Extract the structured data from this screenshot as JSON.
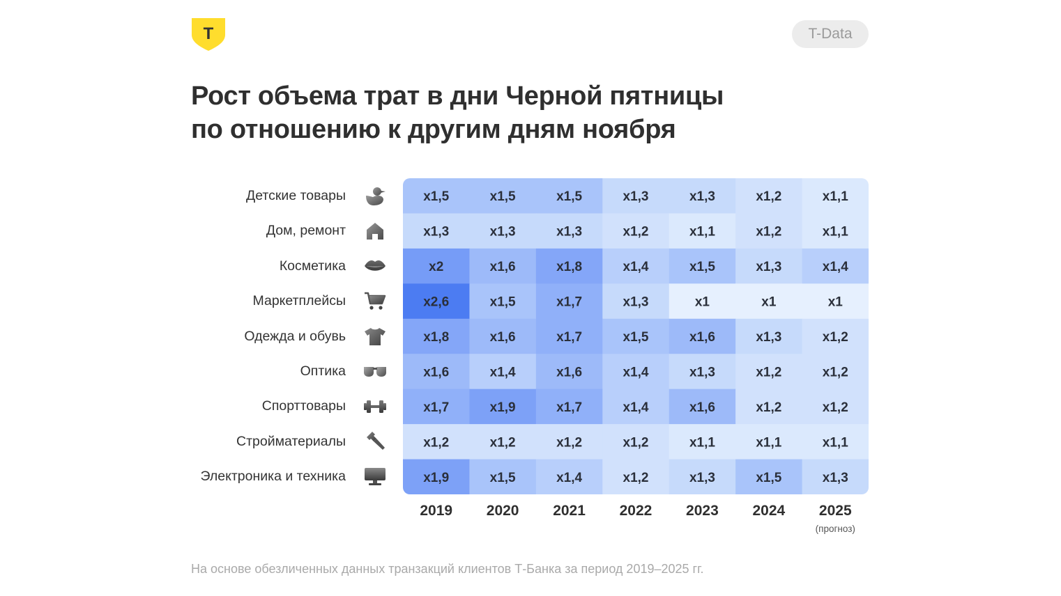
{
  "brand": {
    "logo_letter": "Т",
    "badge": "T-Data",
    "colors": {
      "logo_yellow": "#FFDD2D",
      "logo_ink": "#333333"
    }
  },
  "title": {
    "line1": "Рост объема трат в дни Черной пятницы",
    "line2": "по отношению к другим дням ноября"
  },
  "footnote": "На основе обезличенных данных транзакций клиентов Т-Банка за период 2019–2025 гг.",
  "chart_data": {
    "type": "heatmap",
    "title": "Рост объема трат в дни Черной пятницы по отношению к другим дням ноября",
    "x_categories": [
      "2019",
      "2020",
      "2021",
      "2022",
      "2023",
      "2024",
      "2025"
    ],
    "x_notes": [
      "",
      "",
      "",
      "",
      "",
      "",
      "(прогноз)"
    ],
    "y_categories": [
      "Детские товары",
      "Дом, ремонт",
      "Косметика",
      "Маркетплейсы",
      "Одежда и обувь",
      "Оптика",
      "Спорттовары",
      "Стройматериалы",
      "Электроника и техника"
    ],
    "y_icons": [
      "duck-icon",
      "house-icon",
      "lips-icon",
      "cart-icon",
      "tshirt-icon",
      "glasses-icon",
      "dumbbell-icon",
      "hammer-icon",
      "monitor-icon"
    ],
    "values": [
      [
        1.5,
        1.5,
        1.5,
        1.3,
        1.3,
        1.2,
        1.1
      ],
      [
        1.3,
        1.3,
        1.3,
        1.2,
        1.1,
        1.2,
        1.1
      ],
      [
        2.0,
        1.6,
        1.8,
        1.4,
        1.5,
        1.3,
        1.4
      ],
      [
        2.6,
        1.5,
        1.7,
        1.3,
        1.0,
        1.0,
        1.0
      ],
      [
        1.8,
        1.6,
        1.7,
        1.5,
        1.6,
        1.3,
        1.2
      ],
      [
        1.6,
        1.4,
        1.6,
        1.4,
        1.3,
        1.2,
        1.2
      ],
      [
        1.7,
        1.9,
        1.7,
        1.4,
        1.6,
        1.2,
        1.2
      ],
      [
        1.2,
        1.2,
        1.2,
        1.2,
        1.1,
        1.1,
        1.1
      ],
      [
        1.9,
        1.5,
        1.4,
        1.2,
        1.3,
        1.5,
        1.3
      ]
    ],
    "labels": [
      [
        "x1,5",
        "x1,5",
        "x1,5",
        "x1,3",
        "x1,3",
        "x1,2",
        "x1,1"
      ],
      [
        "x1,3",
        "x1,3",
        "x1,3",
        "x1,2",
        "x1,1",
        "x1,2",
        "x1,1"
      ],
      [
        "x2",
        "x1,6",
        "x1,8",
        "x1,4",
        "x1,5",
        "x1,3",
        "x1,4"
      ],
      [
        "x2,6",
        "x1,5",
        "x1,7",
        "x1,3",
        "x1",
        "x1",
        "x1"
      ],
      [
        "x1,8",
        "x1,6",
        "x1,7",
        "x1,5",
        "x1,6",
        "x1,3",
        "x1,2"
      ],
      [
        "x1,6",
        "x1,4",
        "x1,6",
        "x1,4",
        "x1,3",
        "x1,2",
        "x1,2"
      ],
      [
        "x1,7",
        "x1,9",
        "x1,7",
        "x1,4",
        "x1,6",
        "x1,2",
        "x1,2"
      ],
      [
        "x1,2",
        "x1,2",
        "x1,2",
        "x1,2",
        "x1,1",
        "x1,1",
        "x1,1"
      ],
      [
        "x1,9",
        "x1,5",
        "x1,4",
        "x1,2",
        "x1,3",
        "x1,5",
        "x1,3"
      ]
    ],
    "color_scale": {
      "stops": [
        {
          "value": 1.0,
          "color": "#E6F0FE"
        },
        {
          "value": 1.3,
          "color": "#C6DAFB"
        },
        {
          "value": 1.5,
          "color": "#A9C4FA"
        },
        {
          "value": 1.8,
          "color": "#84A6F8"
        },
        {
          "value": 2.6,
          "color": "#4C7CF2"
        }
      ],
      "text_color": "#2A2F3A"
    }
  }
}
